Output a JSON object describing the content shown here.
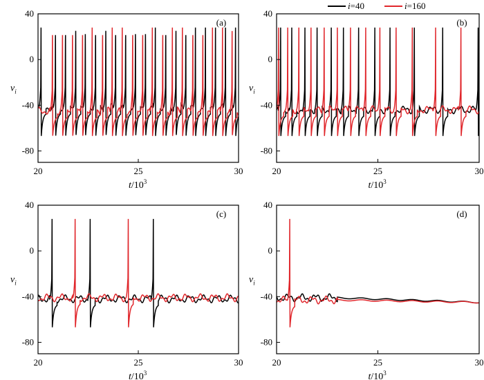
{
  "legend": {
    "entries": [
      {
        "var": "i",
        "eq": "=40",
        "color": "#000000"
      },
      {
        "var": "i",
        "eq": "=160",
        "color": "#e0262b"
      }
    ]
  },
  "axes_text": {
    "ylabel_main": "v",
    "ylabel_sub": "i",
    "xlabel_main": "t",
    "xlabel_rest": "/10",
    "xlabel_sup": "3"
  },
  "chart_data": [
    {
      "type": "line",
      "panel": "(a)",
      "xlim": [
        20,
        30
      ],
      "ylim": [
        -90,
        40
      ],
      "xticks": [
        20,
        25,
        30
      ],
      "yticks": [
        40,
        0,
        -40,
        -80
      ],
      "series": [
        {
          "name": "i=40",
          "color": "#000000",
          "baseline": -42,
          "spikes": [
            20.15,
            20.87,
            21.37,
            21.88,
            22.36,
            22.87,
            23.38,
            23.87,
            24.37,
            24.86,
            25.36,
            25.85,
            26.37,
            26.88,
            27.37,
            27.85,
            28.35,
            28.85,
            29.35,
            29.85
          ]
        },
        {
          "name": "i=160",
          "color": "#e0262b",
          "baseline": -45,
          "spikes": [
            20.72,
            21.22,
            21.72,
            22.22,
            22.7,
            23.22,
            23.7,
            24.2,
            24.72,
            25.22,
            25.7,
            26.22,
            26.7,
            27.2,
            27.72,
            28.22,
            28.7,
            29.2,
            29.68
          ]
        }
      ]
    },
    {
      "type": "line",
      "panel": "(b)",
      "xlim": [
        20,
        30
      ],
      "ylim": [
        -90,
        40
      ],
      "xticks": [
        20,
        25,
        30
      ],
      "yticks": [
        40,
        0,
        -40,
        -80
      ],
      "series": [
        {
          "name": "i=40",
          "color": "#000000",
          "baseline": -44,
          "spikes": [
            20.2,
            20.75,
            21.4,
            22.0,
            22.7,
            23.3,
            24.05,
            24.85,
            25.6,
            26.8,
            28.2,
            29.95
          ]
        },
        {
          "name": "i=160",
          "color": "#e0262b",
          "baseline": -44,
          "spikes": [
            20.1,
            20.55,
            21.1,
            21.7,
            22.35,
            23.0,
            23.65,
            24.4,
            25.1,
            25.9,
            26.7,
            27.85,
            29.1
          ]
        }
      ]
    },
    {
      "type": "line",
      "panel": "(c)",
      "xlim": [
        20,
        30
      ],
      "ylim": [
        -90,
        40
      ],
      "xticks": [
        20,
        25,
        30
      ],
      "yticks": [
        40,
        0,
        -40,
        -80
      ],
      "series": [
        {
          "name": "i=40",
          "color": "#000000",
          "baseline": -42,
          "spikes": [
            20.7,
            22.6,
            25.75
          ]
        },
        {
          "name": "i=160",
          "color": "#e0262b",
          "baseline": -41,
          "spikes": [
            21.85,
            24.5
          ]
        }
      ]
    },
    {
      "type": "line",
      "panel": "(d)",
      "xlim": [
        20,
        30
      ],
      "ylim": [
        -90,
        40
      ],
      "xticks": [
        20,
        25,
        30
      ],
      "yticks": [
        40,
        0,
        -40,
        -80
      ],
      "series": [
        {
          "name": "i=40",
          "color": "#000000",
          "baseline": -41,
          "spikes": []
        },
        {
          "name": "i=160",
          "color": "#e0262b",
          "baseline": -43,
          "spikes": [
            20.65
          ]
        }
      ]
    }
  ]
}
